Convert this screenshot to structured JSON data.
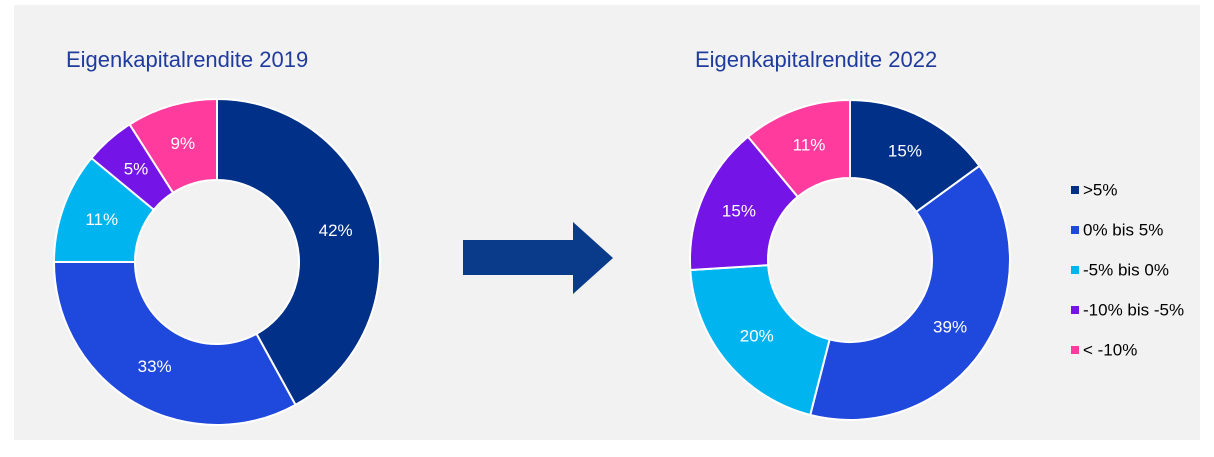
{
  "chart_data": [
    {
      "type": "donut",
      "title": "Eigenkapitalrendite 2019",
      "values": [
        42,
        33,
        11,
        5,
        9
      ],
      "value_labels": [
        "42%",
        "33%",
        "11%",
        "5%",
        "9%"
      ]
    },
    {
      "type": "donut",
      "title": "Eigenkapitalrendite 2022",
      "values": [
        15,
        39,
        20,
        15,
        11
      ],
      "value_labels": [
        "15%",
        "39%",
        "20%",
        "15%",
        "11%"
      ]
    }
  ],
  "legend": {
    "categories": [
      ">5%",
      "0% bis 5%",
      "-5% bis 0%",
      "-10% bis -5%",
      "< -10%"
    ],
    "colors": [
      "#003087",
      "#1f48dc",
      "#00b4f0",
      "#7514e6",
      "#ff3c9e"
    ]
  }
}
